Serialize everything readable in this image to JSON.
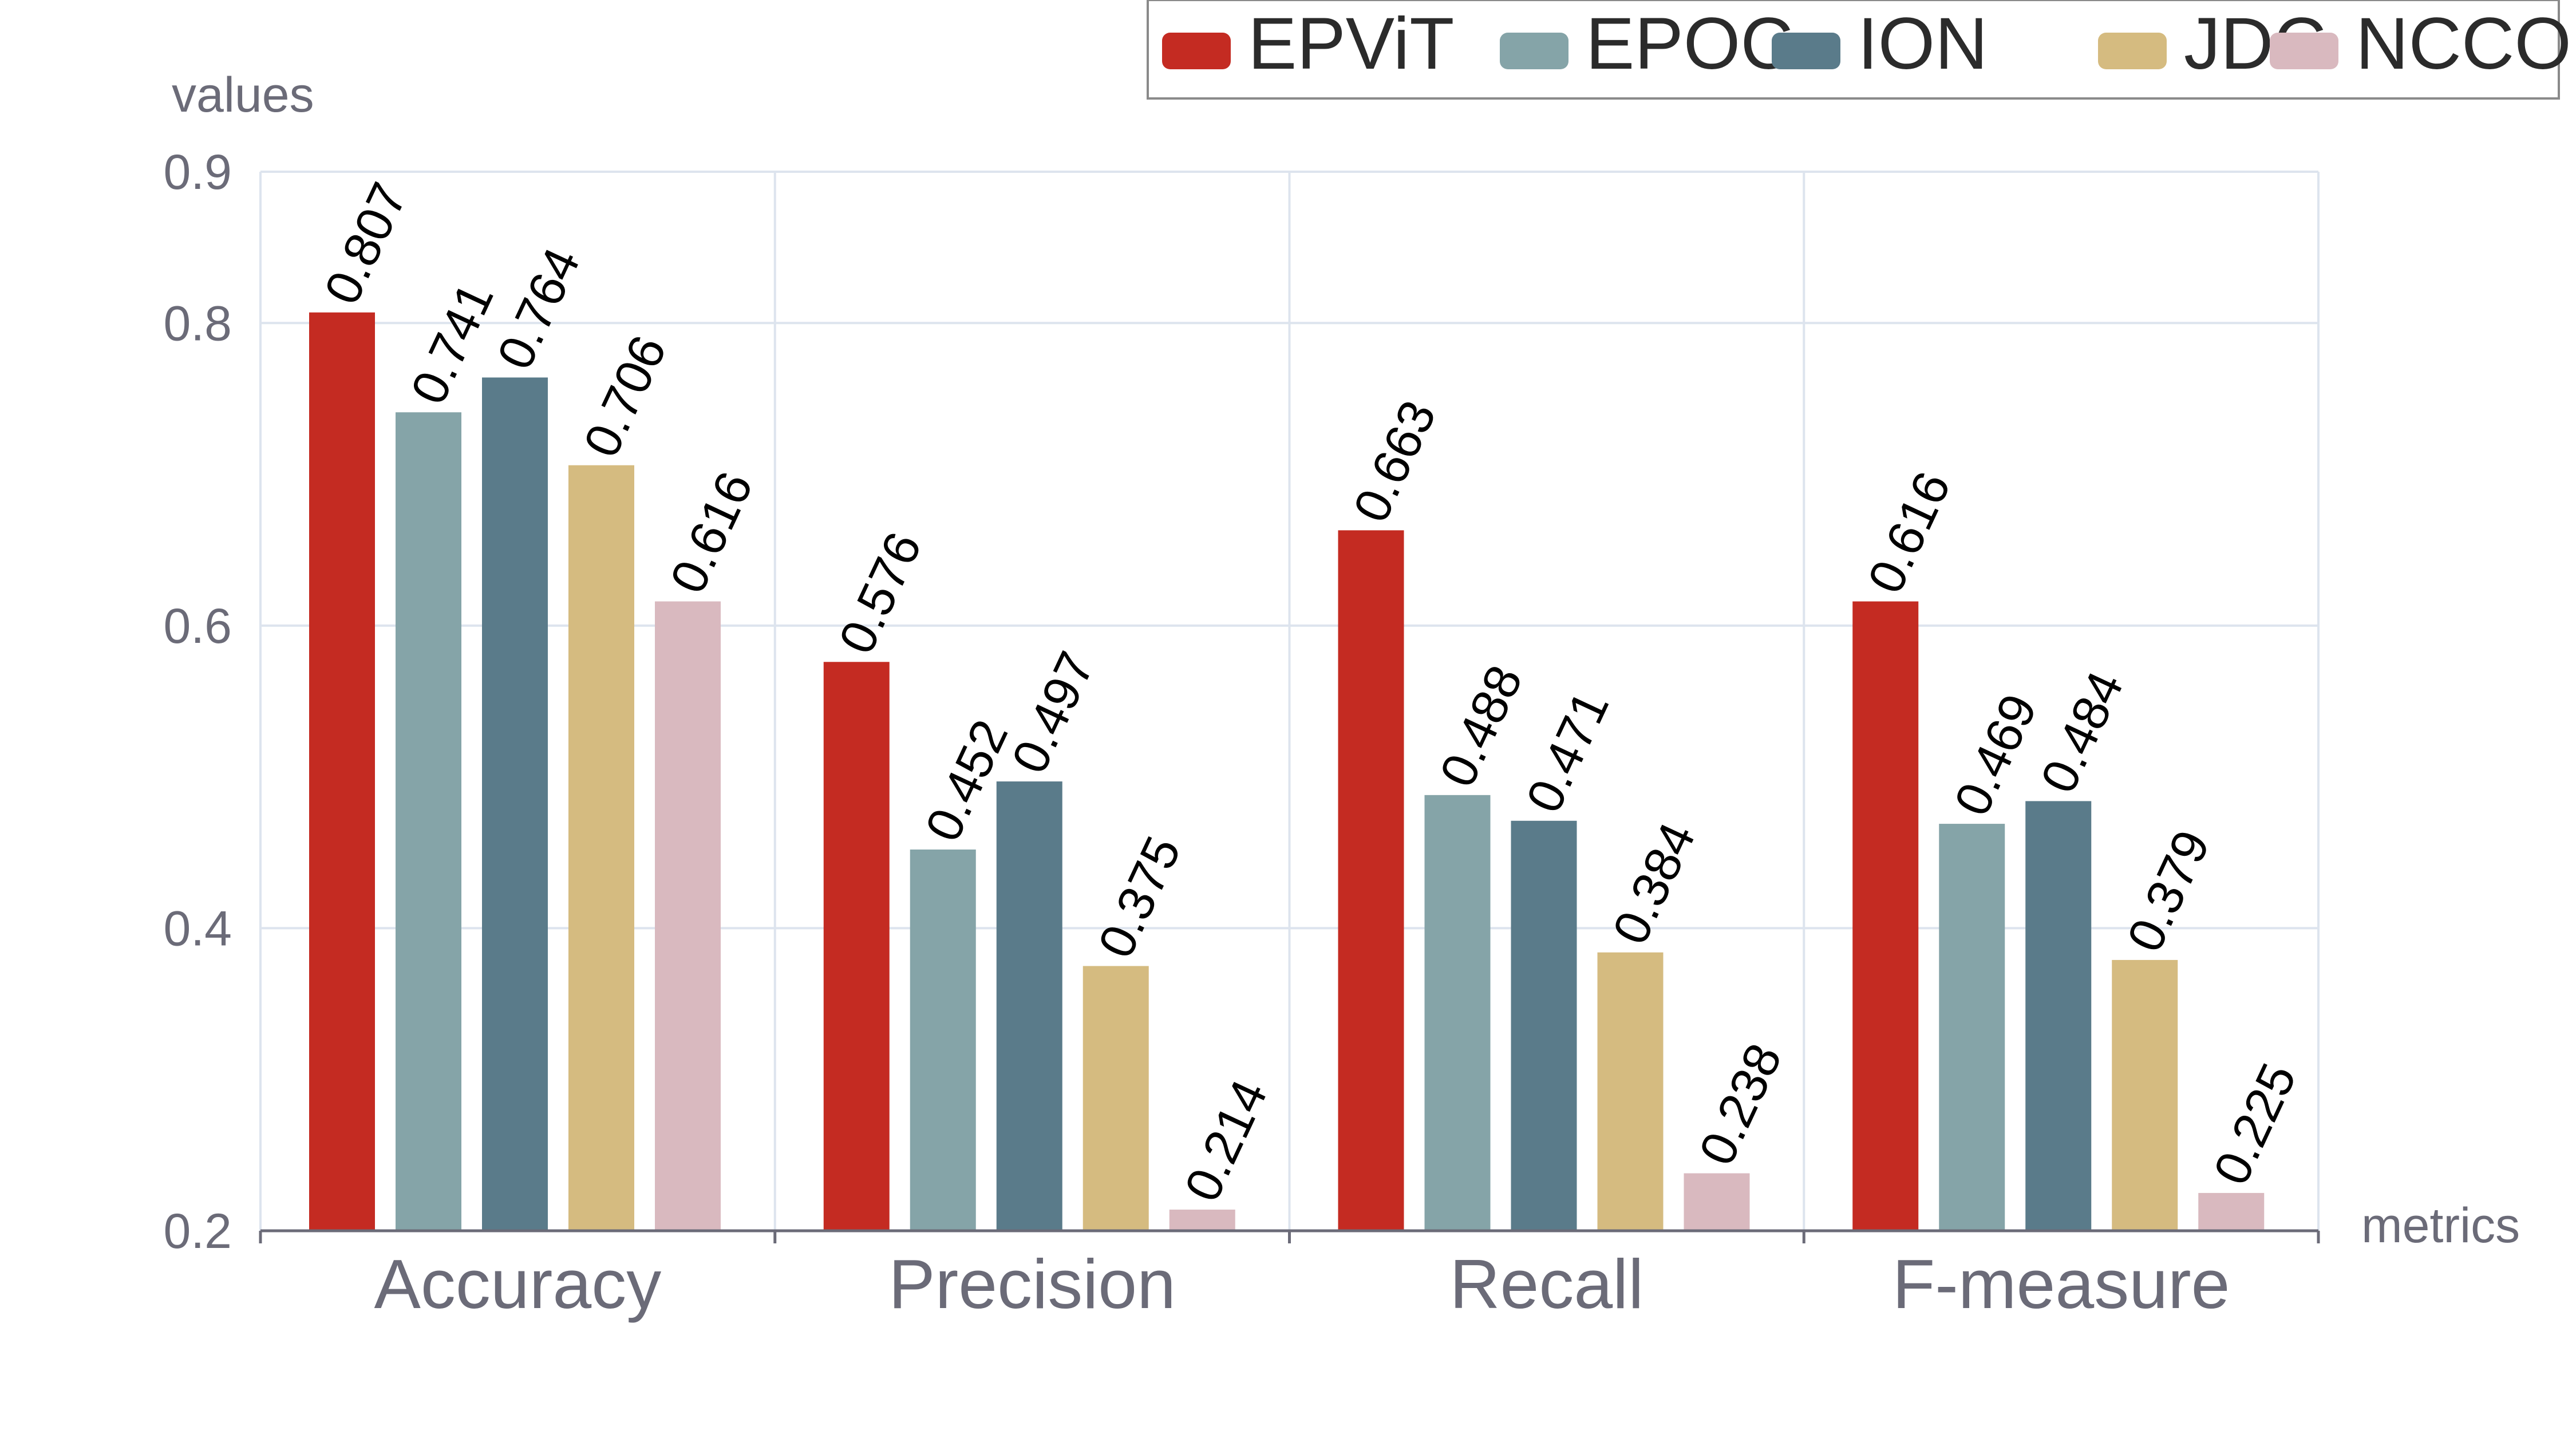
{
  "chart_data": {
    "type": "bar",
    "title": "",
    "xlabel": "metrics",
    "ylabel": "values",
    "ylim": [
      0.2,
      0.9
    ],
    "yticks": [
      "0.2",
      "0.4",
      "0.6",
      "0.8",
      "0.9"
    ],
    "grid": true,
    "legend_position": "top-right",
    "categories": [
      "Accuracy",
      "Precision",
      "Recall",
      "F-measure"
    ],
    "series": [
      {
        "name": "EPViT",
        "color": "#c42b22",
        "values": [
          0.807,
          0.576,
          0.663,
          0.616
        ],
        "labels": [
          "0.807",
          "0.576",
          "0.663",
          "0.616"
        ]
      },
      {
        "name": "EPOC",
        "color": "#85a4a8",
        "values": [
          0.741,
          0.452,
          0.488,
          0.469
        ],
        "labels": [
          "0.741",
          "0.452",
          "0.488",
          "0.469"
        ]
      },
      {
        "name": "ION",
        "color": "#5a7b8a",
        "values": [
          0.764,
          0.497,
          0.471,
          0.484
        ],
        "labels": [
          "0.764",
          "0.497",
          "0.471",
          "0.484"
        ]
      },
      {
        "name": "JDC",
        "color": "#d5bb80",
        "values": [
          0.706,
          0.375,
          0.384,
          0.379
        ],
        "labels": [
          "0.706",
          "0.375",
          "0.384",
          "0.379"
        ]
      },
      {
        "name": "NCCO",
        "color": "#d9b9bf",
        "values": [
          0.616,
          0.214,
          0.238,
          0.225
        ],
        "labels": [
          "0.616",
          "0.214",
          "0.238",
          "0.225"
        ]
      }
    ]
  }
}
